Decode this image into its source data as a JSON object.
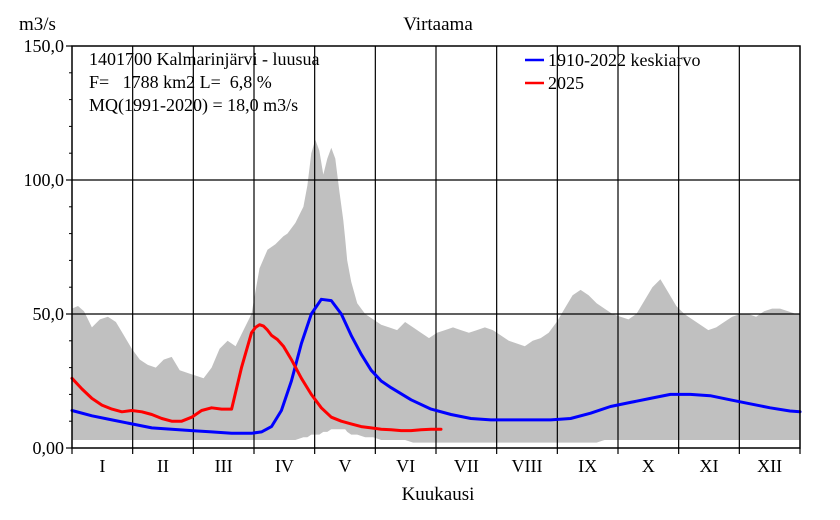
{
  "chart_data": {
    "type": "area",
    "title": "Virtaama",
    "ylabel": "m3/s",
    "xlabel": "Kuukausi",
    "ylim": [
      0,
      150
    ],
    "yticks": [
      "0,00",
      "50,0",
      "100,0",
      "150,0"
    ],
    "ytick_values": [
      0,
      50,
      100,
      150
    ],
    "xlim": [
      0,
      365
    ],
    "months": [
      "I",
      "II",
      "III",
      "IV",
      "V",
      "VI",
      "VII",
      "VIII",
      "IX",
      "X",
      "XI",
      "XII"
    ],
    "grid": true,
    "legend_position": "top-right",
    "info_lines": [
      "1401700 Kalmarinjärvi - luusua",
      "F=   1788 km2 L=  6,8 %",
      "MQ(1991-2020) = 18,0 m3/s"
    ],
    "band": {
      "name": "min-max range",
      "color": "#c0c0c0",
      "x": [
        0,
        3,
        6,
        10,
        14,
        18,
        22,
        26,
        30,
        34,
        38,
        42,
        46,
        50,
        54,
        58,
        62,
        66,
        70,
        74,
        78,
        82,
        86,
        90,
        94,
        98,
        102,
        106,
        108,
        112,
        116,
        118,
        120,
        122,
        124,
        126,
        128,
        130,
        131,
        132,
        134,
        136,
        137,
        138,
        140,
        143,
        147,
        151,
        155,
        159,
        163,
        167,
        171,
        175,
        179,
        183,
        187,
        191,
        195,
        199,
        203,
        207,
        211,
        215,
        219,
        223,
        227,
        231,
        235,
        239,
        243,
        247,
        251,
        255,
        259,
        263,
        267,
        271,
        275,
        279,
        283,
        287,
        291,
        295,
        299,
        303,
        307,
        311,
        315,
        319,
        323,
        327,
        331,
        335,
        339,
        343,
        347,
        351,
        355,
        359,
        363,
        365
      ],
      "max": [
        52,
        53,
        51,
        45,
        48,
        49,
        47,
        42,
        37,
        33,
        31,
        30,
        33,
        34,
        29,
        28,
        27,
        26,
        30,
        37,
        40,
        38,
        44,
        50,
        67,
        74,
        76,
        79,
        80,
        84,
        90,
        98,
        110,
        115,
        111,
        102,
        108,
        112,
        110,
        108,
        96,
        85,
        78,
        70,
        62,
        54,
        50,
        48,
        46,
        45,
        44,
        47,
        45,
        43,
        41,
        43,
        44,
        45,
        44,
        43,
        44,
        45,
        44,
        42,
        40,
        39,
        38,
        40,
        41,
        43,
        47,
        52,
        57,
        59,
        57,
        54,
        52,
        50,
        49,
        48,
        50,
        55,
        60,
        63,
        58,
        53,
        50,
        48,
        46,
        44,
        45,
        47,
        49,
        50,
        50,
        49,
        51,
        52,
        52,
        51,
        50,
        50
      ],
      "min": [
        3,
        3,
        3,
        3,
        3,
        3,
        3,
        3,
        3,
        3,
        3,
        3,
        3,
        3,
        3,
        3,
        3,
        3,
        3,
        3,
        3,
        3,
        3,
        3,
        3,
        3,
        3,
        3,
        3,
        3,
        4,
        4,
        5,
        5,
        5,
        6,
        6,
        7,
        7,
        7,
        7,
        7,
        7,
        6,
        5,
        5,
        4,
        4,
        3,
        3,
        3,
        3,
        2,
        2,
        2,
        2,
        2,
        2,
        2,
        2,
        2,
        2,
        2,
        2,
        2,
        2,
        2,
        2,
        2,
        2,
        2,
        2,
        2,
        2,
        2,
        2,
        3,
        3,
        3,
        3,
        3,
        3,
        3,
        3,
        3,
        3,
        3,
        3,
        3,
        3,
        3,
        3,
        3,
        3,
        3,
        3,
        3,
        3,
        3,
        3,
        3,
        3
      ]
    },
    "series": [
      {
        "name": "1910-2022 keskiarvo",
        "color": "#0000ff",
        "x": [
          0,
          10,
          20,
          30,
          40,
          50,
          60,
          70,
          80,
          90,
          95,
          100,
          105,
          110,
          115,
          120,
          125,
          130,
          135,
          140,
          145,
          150,
          155,
          160,
          170,
          180,
          190,
          200,
          210,
          220,
          230,
          240,
          250,
          260,
          270,
          280,
          290,
          300,
          310,
          320,
          330,
          340,
          350,
          360,
          365
        ],
        "values": [
          14.0,
          12.0,
          10.5,
          9.0,
          7.5,
          7.0,
          6.5,
          6.0,
          5.5,
          5.5,
          6.0,
          8.0,
          14.0,
          25.0,
          39.0,
          50.0,
          55.5,
          55.0,
          50.0,
          42.0,
          35.0,
          29.0,
          25.0,
          22.5,
          18.0,
          14.5,
          12.5,
          11.0,
          10.5,
          10.5,
          10.5,
          10.5,
          11.0,
          13.0,
          15.5,
          17.0,
          18.5,
          20.0,
          20.0,
          19.5,
          18.0,
          16.5,
          15.0,
          13.8,
          13.5
        ]
      },
      {
        "name": "2025",
        "color": "#ff0000",
        "x": [
          0,
          5,
          10,
          15,
          20,
          25,
          30,
          35,
          40,
          45,
          50,
          55,
          60,
          65,
          70,
          75,
          80,
          85,
          90,
          92,
          94,
          96,
          98,
          100,
          103,
          106,
          110,
          115,
          120,
          125,
          130,
          135,
          140,
          145,
          150,
          155,
          160,
          165,
          170,
          175,
          180,
          185
        ],
        "values": [
          26.0,
          22.0,
          18.5,
          16.0,
          14.5,
          13.5,
          14.0,
          13.5,
          12.5,
          11.0,
          10.0,
          10.0,
          11.5,
          14.0,
          15.0,
          14.5,
          14.5,
          30.0,
          43.0,
          45.0,
          46.0,
          45.5,
          44.0,
          42.0,
          40.5,
          38.0,
          33.0,
          26.0,
          20.0,
          15.0,
          11.5,
          10.0,
          9.0,
          8.0,
          7.5,
          7.0,
          6.8,
          6.5,
          6.5,
          6.8,
          7.0,
          7.0
        ]
      }
    ]
  }
}
